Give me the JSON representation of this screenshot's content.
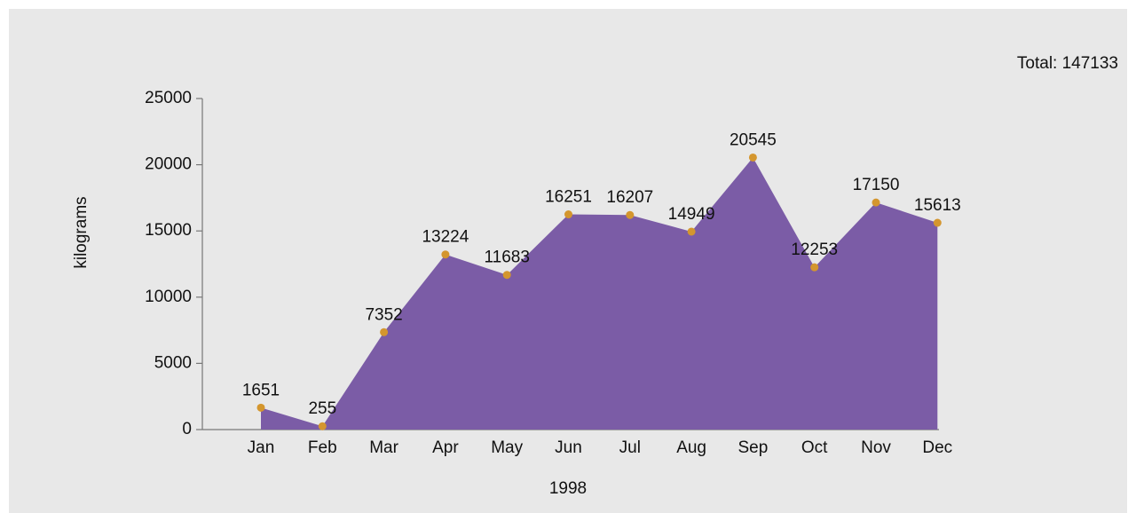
{
  "chart_data": {
    "type": "area",
    "annotation": "Total: 147133",
    "xlabel": "1998",
    "ylabel": "kilograms",
    "categories": [
      "Jan",
      "Feb",
      "Mar",
      "Apr",
      "May",
      "Jun",
      "Jul",
      "Aug",
      "Sep",
      "Oct",
      "Nov",
      "Dec"
    ],
    "values": [
      1651,
      255,
      7352,
      13224,
      11683,
      16251,
      16207,
      14949,
      20545,
      12253,
      17150,
      15613
    ],
    "color": "#7b5ca6",
    "marker_color": "#d4962e",
    "ylim": [
      0,
      25000
    ],
    "yticks": [
      0,
      5000,
      10000,
      15000,
      20000,
      25000
    ],
    "grid": false
  }
}
